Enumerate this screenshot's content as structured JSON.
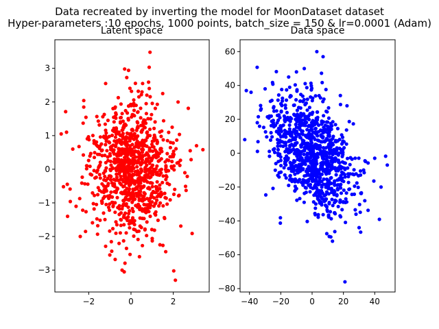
{
  "figure": {
    "suptitle_line1": "Data recreated by inverting the model for MoonDataset dataset",
    "suptitle_line2": "Hyper-parameters :10 epochs, 1000 points, batch_size = 150 & lr=0.0001 (Adam)"
  },
  "chart_data": [
    {
      "type": "scatter",
      "title": "Latent space",
      "xlabel": "",
      "ylabel": "",
      "xlim": [
        -3.6,
        3.7
      ],
      "ylim": [
        -3.65,
        3.85
      ],
      "xticks": [
        -2,
        0,
        2
      ],
      "yticks": [
        -3,
        -2,
        -1,
        0,
        1,
        2,
        3
      ],
      "xtick_labels": [
        "−2",
        "0",
        "2"
      ],
      "ytick_labels": [
        "−3",
        "−2",
        "−1",
        "0",
        "1",
        "2",
        "3"
      ],
      "color": "#ff0000",
      "n_points": 1000,
      "distribution": {
        "mean": [
          0.0,
          0.0
        ],
        "std": [
          1.0,
          1.0
        ],
        "corr": 0.0
      },
      "points": [
        [
          0.9,
          3.48
        ],
        [
          -0.3,
          2.98
        ],
        [
          2.1,
          -3.3
        ],
        [
          -3.3,
          1.05
        ],
        [
          -3.05,
          1.1
        ],
        [
          -3.0,
          -1.4
        ],
        [
          -2.15,
          -1.85
        ],
        [
          3.4,
          0.58
        ],
        [
          3.1,
          0.7
        ],
        [
          -0.42,
          -3.0
        ],
        [
          -0.32,
          -3.05
        ],
        [
          0.4,
          -2.6
        ],
        [
          -1.0,
          -2.55
        ],
        [
          2.8,
          0.55
        ],
        [
          -2.4,
          -2.0
        ],
        [
          1.5,
          2.25
        ],
        [
          0.55,
          2.55
        ],
        [
          -1.2,
          2.55
        ]
      ],
      "grid": false,
      "legend": "none"
    },
    {
      "type": "scatter",
      "title": "Data space",
      "xlabel": "",
      "ylabel": "",
      "xlim": [
        -46,
        53
      ],
      "ylim": [
        -82,
        67
      ],
      "xticks": [
        -40,
        -20,
        0,
        20,
        40
      ],
      "yticks": [
        -80,
        -60,
        -40,
        -20,
        0,
        20,
        40,
        60
      ],
      "xtick_labels": [
        "−40",
        "−20",
        "0",
        "20",
        "40"
      ],
      "ytick_labels": [
        "−80",
        "−60",
        "−40",
        "−20",
        "0",
        "20",
        "40",
        "60"
      ],
      "color": "#0000ff",
      "n_points": 1000,
      "distribution": {
        "mean": [
          0.0,
          0.0
        ],
        "std": [
          14.0,
          17.0
        ],
        "corr": -0.45
      },
      "points": [
        [
          3,
          60
        ],
        [
          7,
          57
        ],
        [
          -10,
          48
        ],
        [
          21,
          -76
        ],
        [
          -42,
          37
        ],
        [
          -39,
          36
        ],
        [
          48,
          -7
        ],
        [
          40,
          -3
        ],
        [
          -43,
          8
        ],
        [
          -15,
          45
        ],
        [
          -5,
          50
        ],
        [
          13,
          -52
        ],
        [
          30,
          -44
        ],
        [
          44,
          -20
        ],
        [
          -30,
          38
        ],
        [
          -35,
          18
        ]
      ],
      "grid": false,
      "legend": "none"
    }
  ]
}
